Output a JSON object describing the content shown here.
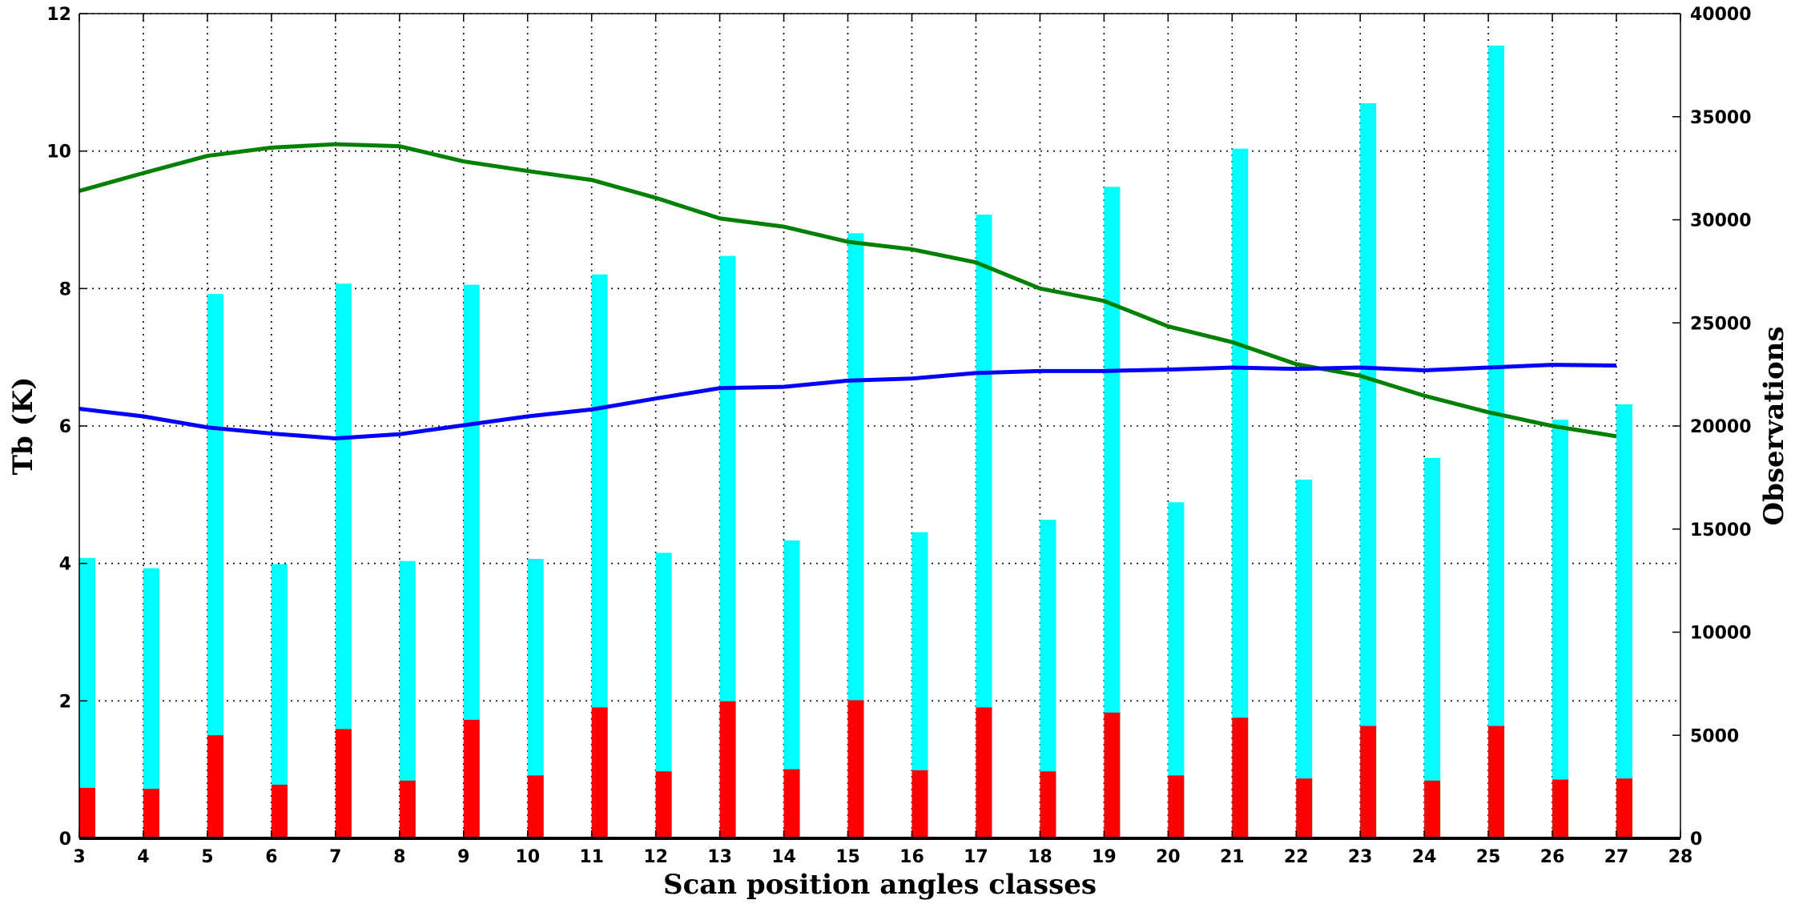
{
  "chart_data": {
    "type": "bar",
    "xlabel": "Scan position angles classes",
    "ylabel": "Tb (K)",
    "y2label": "Observations",
    "x_ticks": [
      3,
      4,
      5,
      6,
      7,
      8,
      9,
      10,
      11,
      12,
      13,
      14,
      15,
      16,
      17,
      18,
      19,
      20,
      21,
      22,
      23,
      24,
      25,
      26,
      27,
      28
    ],
    "xlim": [
      3,
      28
    ],
    "ylim": [
      0,
      12
    ],
    "y_ticks": [
      0,
      2,
      4,
      6,
      8,
      10,
      12
    ],
    "y2lim": [
      0,
      40000
    ],
    "y2_ticks": [
      0,
      5000,
      10000,
      15000,
      20000,
      25000,
      30000,
      35000,
      40000
    ],
    "grid": true,
    "x": [
      3,
      4,
      5,
      6,
      7,
      8,
      9,
      10,
      11,
      12,
      13,
      14,
      15,
      16,
      17,
      18,
      19,
      20,
      21,
      22,
      23,
      24,
      25,
      26,
      27
    ],
    "series": [
      {
        "kind": "bar",
        "axis": "right",
        "color": "#00ffff",
        "values": [
          13600,
          13100,
          26400,
          13300,
          26900,
          13450,
          26850,
          13550,
          27350,
          13850,
          28250,
          14450,
          29350,
          14850,
          30250,
          15450,
          31600,
          16300,
          33450,
          17400,
          35650,
          18450,
          38450,
          20300,
          21050
        ]
      },
      {
        "kind": "bar",
        "axis": "right",
        "color": "#ff0000",
        "values": [
          2450,
          2400,
          5000,
          2600,
          5300,
          2800,
          5750,
          3050,
          6350,
          3250,
          6650,
          3350,
          6700,
          3300,
          6350,
          3250,
          6100,
          3050,
          5850,
          2900,
          5450,
          2800,
          5450,
          2850,
          2900
        ]
      },
      {
        "kind": "line",
        "axis": "left",
        "color": "#008000",
        "values": [
          9.42,
          9.68,
          9.93,
          10.05,
          10.1,
          10.07,
          9.85,
          9.71,
          9.58,
          9.32,
          9.02,
          8.9,
          8.68,
          8.57,
          8.38,
          8.0,
          7.82,
          7.45,
          7.22,
          6.9,
          6.73,
          6.44,
          6.2,
          6.0,
          5.85
        ]
      },
      {
        "kind": "line",
        "axis": "left",
        "color": "#0000ff",
        "values": [
          6.25,
          6.14,
          5.98,
          5.89,
          5.82,
          5.88,
          6.01,
          6.14,
          6.24,
          6.4,
          6.55,
          6.57,
          6.66,
          6.69,
          6.77,
          6.8,
          6.8,
          6.82,
          6.85,
          6.83,
          6.85,
          6.81,
          6.85,
          6.89,
          6.88
        ]
      }
    ]
  }
}
